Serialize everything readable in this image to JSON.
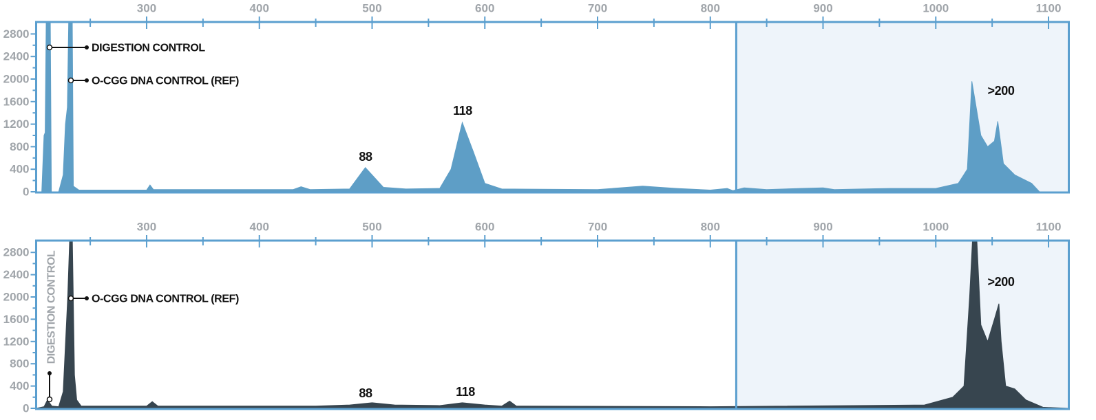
{
  "chart_data": [
    {
      "type": "area",
      "color": "#5e9ec6",
      "xlim": [
        202,
        1118
      ],
      "ylim": [
        0,
        3000
      ],
      "xticks": [
        300,
        400,
        500,
        600,
        700,
        800,
        900,
        1000,
        1100
      ],
      "xminorticks": [
        250,
        350,
        450,
        550,
        650,
        750,
        850,
        950,
        1050
      ],
      "yticks": [
        0,
        400,
        800,
        1200,
        1600,
        2000,
        2400,
        2800
      ],
      "yminorticks": [
        200,
        600,
        1000,
        1400,
        1800,
        2200,
        2600
      ],
      "shaded_x": [
        823,
        1118
      ],
      "x": [
        202,
        207,
        209,
        210,
        211,
        213,
        214.5,
        215.5,
        222,
        226,
        228,
        229.7,
        231,
        234,
        235,
        240,
        300,
        303,
        306,
        430,
        437,
        445,
        480,
        494,
        510,
        530,
        560,
        570,
        580,
        590,
        600,
        615,
        700,
        740,
        770,
        800,
        815,
        820,
        830,
        850,
        880,
        900,
        910,
        960,
        1000,
        1020,
        1028,
        1032,
        1040,
        1046,
        1052,
        1055,
        1060,
        1070,
        1085,
        1092,
        1118
      ],
      "values": [
        0,
        0,
        1000,
        1050,
        3200,
        3200,
        3200,
        0,
        0,
        300,
        1200,
        1500,
        3200,
        3200,
        100,
        30,
        30,
        120,
        40,
        40,
        90,
        40,
        50,
        430,
        80,
        50,
        60,
        400,
        1230,
        700,
        150,
        50,
        40,
        100,
        60,
        30,
        60,
        20,
        70,
        40,
        60,
        70,
        40,
        60,
        60,
        150,
        400,
        1960,
        1000,
        800,
        900,
        1250,
        500,
        300,
        150,
        0,
        0
      ],
      "annotations": [
        {
          "text": "DIGESTION CONTROL"
        },
        {
          "text": "O-CGG DNA CONTROL (REF)"
        },
        {
          "text": "88"
        },
        {
          "text": "118"
        },
        {
          "text": ">200"
        }
      ]
    },
    {
      "type": "area",
      "color": "#37454f",
      "xlim": [
        202,
        1118
      ],
      "ylim": [
        0,
        3000
      ],
      "xticks": [
        300,
        400,
        500,
        600,
        700,
        800,
        900,
        1000,
        1100
      ],
      "xminorticks": [
        250,
        350,
        450,
        550,
        650,
        750,
        850,
        950,
        1050
      ],
      "yticks": [
        0,
        400,
        800,
        1200,
        1600,
        2000,
        2400,
        2800
      ],
      "yminorticks": [
        200,
        600,
        1000,
        1400,
        1800,
        2200,
        2600
      ],
      "shaded_x": [
        823,
        1118
      ],
      "x": [
        202,
        209,
        212,
        216,
        222,
        226,
        230,
        232,
        234,
        236,
        238,
        242,
        300,
        305,
        310,
        450,
        480,
        500,
        520,
        560,
        580,
        600,
        615,
        622,
        628,
        800,
        990,
        1015,
        1025,
        1030,
        1033,
        1036,
        1040,
        1046,
        1052,
        1056,
        1058,
        1062,
        1070,
        1080,
        1095,
        1118
      ],
      "values": [
        0,
        30,
        150,
        40,
        30,
        300,
        2000,
        3200,
        3200,
        600,
        150,
        40,
        40,
        120,
        40,
        40,
        60,
        100,
        60,
        50,
        100,
        60,
        40,
        130,
        40,
        30,
        60,
        200,
        400,
        2000,
        3200,
        3200,
        1500,
        1200,
        1600,
        1880,
        1200,
        400,
        350,
        150,
        20,
        0
      ],
      "annotations": [
        {
          "text": "DIGESTION CONTROL"
        },
        {
          "text": "O-CGG DNA CONTROL (REF)"
        },
        {
          "text": "88"
        },
        {
          "text": "118"
        },
        {
          "text": ">200"
        }
      ]
    }
  ]
}
